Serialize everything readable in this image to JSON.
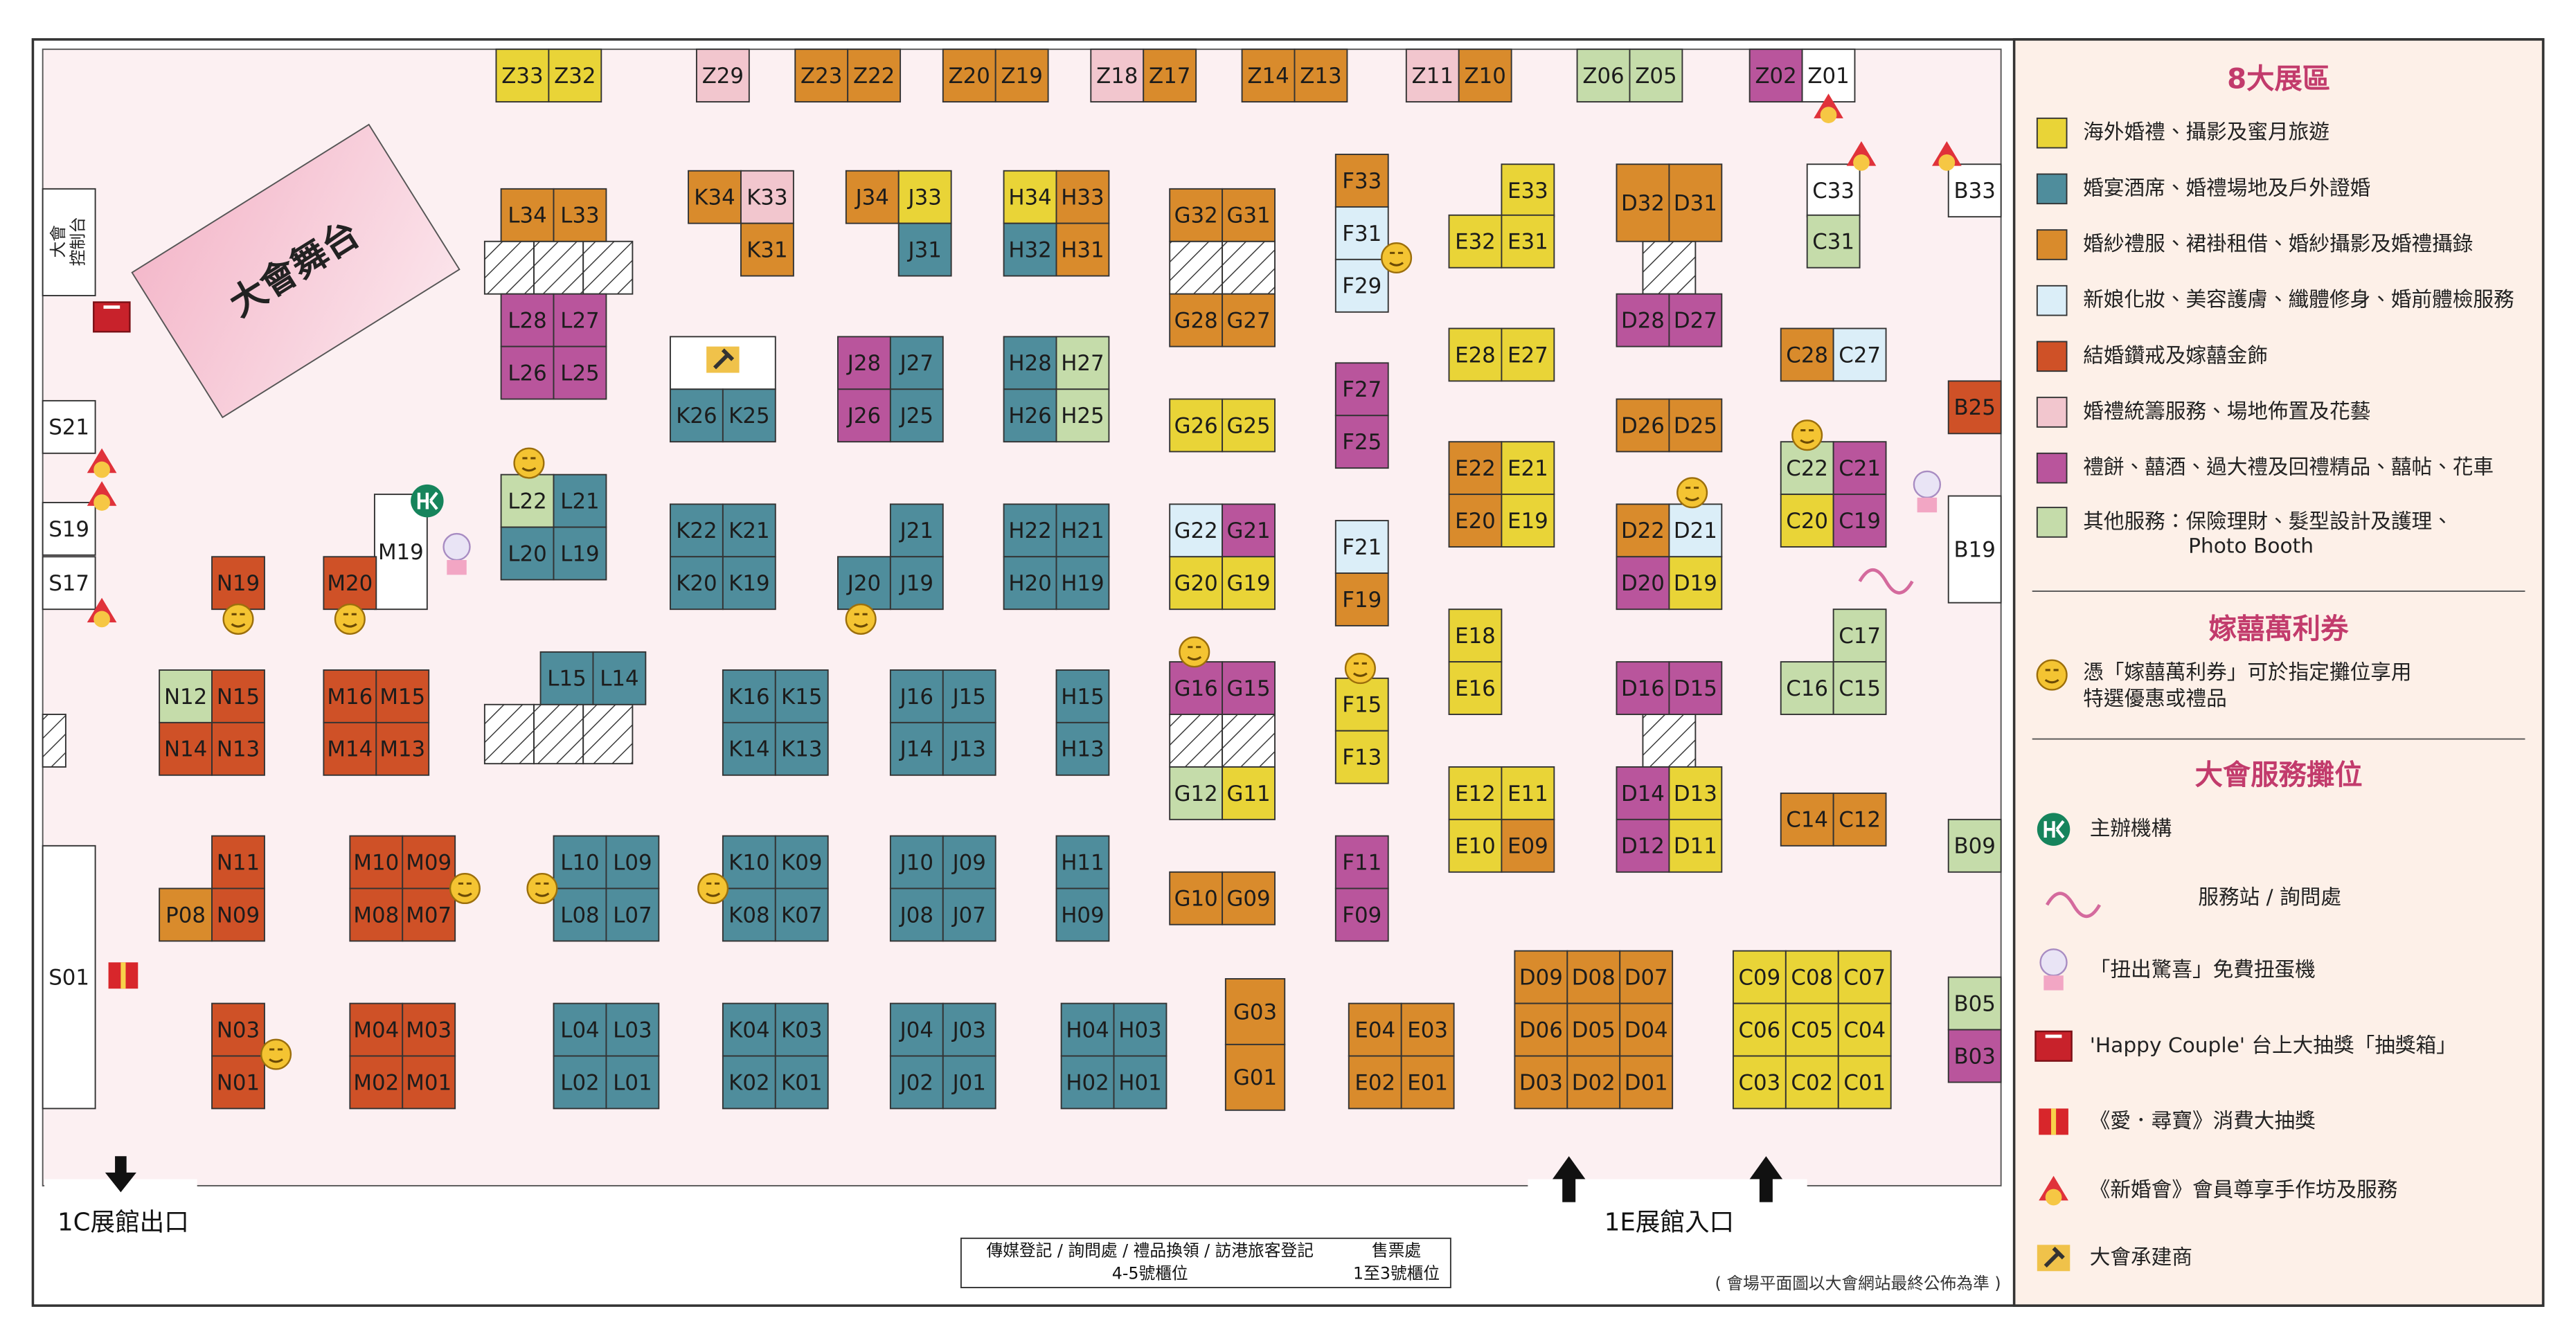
{
  "booths": [
    {
      "id": "Z33",
      "color": "#e9d437"
    },
    {
      "id": "Z32",
      "color": "#e9d437"
    },
    {
      "id": "Z29",
      "color": "#f2c6ce"
    },
    {
      "id": "Z23",
      "color": "#d98b2c"
    },
    {
      "id": "Z22",
      "color": "#d98b2c"
    },
    {
      "id": "Z20",
      "color": "#d98b2c"
    },
    {
      "id": "Z19",
      "color": "#d98b2c"
    },
    {
      "id": "Z18",
      "color": "#f2c6ce"
    },
    {
      "id": "Z17",
      "color": "#d98b2c"
    },
    {
      "id": "Z14",
      "color": "#d98b2c"
    },
    {
      "id": "Z13",
      "color": "#d98b2c"
    },
    {
      "id": "Z11",
      "color": "#f2c6ce"
    },
    {
      "id": "Z10",
      "color": "#d98b2c"
    },
    {
      "id": "Z06",
      "color": "#c5dcaa"
    },
    {
      "id": "Z05",
      "color": "#c5dcaa"
    },
    {
      "id": "Z02",
      "color": "#b9559c"
    },
    {
      "id": "Z01",
      "color": "#ffffff"
    },
    {
      "id": "L34",
      "color": "#d98b2c"
    },
    {
      "id": "L33",
      "color": "#d98b2c"
    },
    {
      "id": "L28",
      "color": "#b9559c"
    },
    {
      "id": "L27",
      "color": "#b9559c"
    },
    {
      "id": "L26",
      "color": "#b9559c"
    },
    {
      "id": "L25",
      "color": "#b9559c"
    },
    {
      "id": "K34",
      "color": "#d98b2c"
    },
    {
      "id": "K33",
      "color": "#f2c6ce"
    },
    {
      "id": "K31",
      "color": "#d98b2c"
    },
    {
      "id": "J34",
      "color": "#d98b2c"
    },
    {
      "id": "J33",
      "color": "#e9d437"
    },
    {
      "id": "J31",
      "color": "#4f8d9c"
    },
    {
      "id": "H34",
      "color": "#e9d437"
    },
    {
      "id": "H33",
      "color": "#d98b2c"
    },
    {
      "id": "H32",
      "color": "#4f8d9c"
    },
    {
      "id": "H31",
      "color": "#d98b2c"
    },
    {
      "id": "G32",
      "color": "#d98b2c"
    },
    {
      "id": "G31",
      "color": "#d98b2c"
    },
    {
      "id": "G28",
      "color": "#d98b2c"
    },
    {
      "id": "G27",
      "color": "#d98b2c"
    },
    {
      "id": "F33",
      "color": "#d98b2c"
    },
    {
      "id": "F31",
      "color": "#dbeef8"
    },
    {
      "id": "F29",
      "color": "#dbeef8"
    },
    {
      "id": "E33",
      "color": "#e9d437"
    },
    {
      "id": "E32",
      "color": "#e9d437"
    },
    {
      "id": "E31",
      "color": "#e9d437"
    },
    {
      "id": "D32",
      "color": "#d98b2c"
    },
    {
      "id": "D31",
      "color": "#d98b2c"
    },
    {
      "id": "D28",
      "color": "#b9559c"
    },
    {
      "id": "D27",
      "color": "#b9559c"
    },
    {
      "id": "C33",
      "color": "#ffffff"
    },
    {
      "id": "C31",
      "color": "#c5dcaa"
    },
    {
      "id": "B33",
      "color": "#ffffff"
    },
    {
      "id": "K26",
      "color": "#4f8d9c"
    },
    {
      "id": "K25",
      "color": "#4f8d9c"
    },
    {
      "id": "J28",
      "color": "#b9559c"
    },
    {
      "id": "J27",
      "color": "#4f8d9c"
    },
    {
      "id": "J26",
      "color": "#b9559c"
    },
    {
      "id": "J25",
      "color": "#4f8d9c"
    },
    {
      "id": "H28",
      "color": "#4f8d9c"
    },
    {
      "id": "H27",
      "color": "#c5dcaa"
    },
    {
      "id": "H26",
      "color": "#4f8d9c"
    },
    {
      "id": "H25",
      "color": "#c5dcaa"
    },
    {
      "id": "G26",
      "color": "#e9d437"
    },
    {
      "id": "G25",
      "color": "#e9d437"
    },
    {
      "id": "F27",
      "color": "#b9559c"
    },
    {
      "id": "F25",
      "color": "#b9559c"
    },
    {
      "id": "E28",
      "color": "#e9d437"
    },
    {
      "id": "E27",
      "color": "#e9d437"
    },
    {
      "id": "C28",
      "color": "#d98b2c"
    },
    {
      "id": "C27",
      "color": "#dbeef8"
    },
    {
      "id": "B25",
      "color": "#cf5127"
    },
    {
      "id": "D26",
      "color": "#d98b2c"
    },
    {
      "id": "D25",
      "color": "#d98b2c"
    },
    {
      "id": "E22",
      "color": "#d98b2c"
    },
    {
      "id": "E21",
      "color": "#e9d437"
    },
    {
      "id": "E20",
      "color": "#d98b2c"
    },
    {
      "id": "E19",
      "color": "#e9d437"
    },
    {
      "id": "C22",
      "color": "#c5dcaa"
    },
    {
      "id": "C21",
      "color": "#b9559c"
    },
    {
      "id": "C20",
      "color": "#e9d437"
    },
    {
      "id": "C19",
      "color": "#b9559c"
    },
    {
      "id": "L22",
      "color": "#c5dcaa"
    },
    {
      "id": "L21",
      "color": "#4f8d9c"
    },
    {
      "id": "L20",
      "color": "#4f8d9c"
    },
    {
      "id": "L19",
      "color": "#4f8d9c"
    },
    {
      "id": "M19",
      "color": "#ffffff"
    },
    {
      "id": "S21",
      "color": "#ffffff"
    },
    {
      "id": "S19",
      "color": "#ffffff"
    },
    {
      "id": "S17",
      "color": "#ffffff"
    },
    {
      "id": "N19",
      "color": "#cf5127"
    },
    {
      "id": "M20",
      "color": "#cf5127"
    },
    {
      "id": "K22",
      "color": "#4f8d9c"
    },
    {
      "id": "K21",
      "color": "#4f8d9c"
    },
    {
      "id": "K20",
      "color": "#4f8d9c"
    },
    {
      "id": "K19",
      "color": "#4f8d9c"
    },
    {
      "id": "J21",
      "color": "#4f8d9c"
    },
    {
      "id": "J20",
      "color": "#4f8d9c"
    },
    {
      "id": "J19",
      "color": "#4f8d9c"
    },
    {
      "id": "H22",
      "color": "#4f8d9c"
    },
    {
      "id": "H21",
      "color": "#4f8d9c"
    },
    {
      "id": "H20",
      "color": "#4f8d9c"
    },
    {
      "id": "H19",
      "color": "#4f8d9c"
    },
    {
      "id": "G22",
      "color": "#dbeef8"
    },
    {
      "id": "G21",
      "color": "#b9559c"
    },
    {
      "id": "G20",
      "color": "#e9d437"
    },
    {
      "id": "G19",
      "color": "#e9d437"
    },
    {
      "id": "F21",
      "color": "#dbeef8"
    },
    {
      "id": "F19",
      "color": "#d98b2c"
    },
    {
      "id": "D22",
      "color": "#d98b2c"
    },
    {
      "id": "D21",
      "color": "#dbeef8"
    },
    {
      "id": "D20",
      "color": "#b9559c"
    },
    {
      "id": "D19",
      "color": "#e9d437"
    },
    {
      "id": "B19",
      "color": "#ffffff"
    },
    {
      "id": "C17",
      "color": "#c5dcaa"
    },
    {
      "id": "C16",
      "color": "#c5dcaa"
    },
    {
      "id": "C15",
      "color": "#c5dcaa"
    },
    {
      "id": "E18",
      "color": "#e9d437"
    },
    {
      "id": "E16",
      "color": "#e9d437"
    },
    {
      "id": "L15",
      "color": "#4f8d9c"
    },
    {
      "id": "L14",
      "color": "#4f8d9c"
    },
    {
      "id": "N12",
      "color": "#c5dcaa"
    },
    {
      "id": "N15",
      "color": "#cf5127"
    },
    {
      "id": "N14",
      "color": "#cf5127"
    },
    {
      "id": "N13",
      "color": "#cf5127"
    },
    {
      "id": "M16",
      "color": "#cf5127"
    },
    {
      "id": "M15",
      "color": "#cf5127"
    },
    {
      "id": "M14",
      "color": "#cf5127"
    },
    {
      "id": "M13",
      "color": "#cf5127"
    },
    {
      "id": "K16",
      "color": "#4f8d9c"
    },
    {
      "id": "K15",
      "color": "#4f8d9c"
    },
    {
      "id": "K14",
      "color": "#4f8d9c"
    },
    {
      "id": "K13",
      "color": "#4f8d9c"
    },
    {
      "id": "J16",
      "color": "#4f8d9c"
    },
    {
      "id": "J15",
      "color": "#4f8d9c"
    },
    {
      "id": "J14",
      "color": "#4f8d9c"
    },
    {
      "id": "J13",
      "color": "#4f8d9c"
    },
    {
      "id": "H15",
      "color": "#4f8d9c"
    },
    {
      "id": "H13",
      "color": "#4f8d9c"
    },
    {
      "id": "G16",
      "color": "#b9559c"
    },
    {
      "id": "G15",
      "color": "#b9559c"
    },
    {
      "id": "G12",
      "color": "#c5dcaa"
    },
    {
      "id": "G11",
      "color": "#e9d437"
    },
    {
      "id": "F15",
      "color": "#e9d437"
    },
    {
      "id": "F13",
      "color": "#e9d437"
    },
    {
      "id": "D16",
      "color": "#b9559c"
    },
    {
      "id": "D15",
      "color": "#b9559c"
    },
    {
      "id": "D14",
      "color": "#b9559c"
    },
    {
      "id": "D13",
      "color": "#e9d437"
    },
    {
      "id": "D12",
      "color": "#b9559c"
    },
    {
      "id": "D11",
      "color": "#e9d437"
    },
    {
      "id": "E12",
      "color": "#e9d437"
    },
    {
      "id": "E11",
      "color": "#e9d437"
    },
    {
      "id": "E10",
      "color": "#e9d437"
    },
    {
      "id": "E09",
      "color": "#d98b2c"
    },
    {
      "id": "C14",
      "color": "#d98b2c"
    },
    {
      "id": "C12",
      "color": "#d98b2c"
    },
    {
      "id": "B09",
      "color": "#c5dcaa"
    },
    {
      "id": "N11",
      "color": "#cf5127"
    },
    {
      "id": "P08",
      "color": "#d98b2c"
    },
    {
      "id": "N09",
      "color": "#cf5127"
    },
    {
      "id": "M10",
      "color": "#cf5127"
    },
    {
      "id": "M09",
      "color": "#cf5127"
    },
    {
      "id": "M08",
      "color": "#cf5127"
    },
    {
      "id": "M07",
      "color": "#cf5127"
    },
    {
      "id": "L10",
      "color": "#4f8d9c"
    },
    {
      "id": "L09",
      "color": "#4f8d9c"
    },
    {
      "id": "L08",
      "color": "#4f8d9c"
    },
    {
      "id": "L07",
      "color": "#4f8d9c"
    },
    {
      "id": "K10",
      "color": "#4f8d9c"
    },
    {
      "id": "K09",
      "color": "#4f8d9c"
    },
    {
      "id": "K08",
      "color": "#4f8d9c"
    },
    {
      "id": "K07",
      "color": "#4f8d9c"
    },
    {
      "id": "J10",
      "color": "#4f8d9c"
    },
    {
      "id": "J09",
      "color": "#4f8d9c"
    },
    {
      "id": "J08",
      "color": "#4f8d9c"
    },
    {
      "id": "J07",
      "color": "#4f8d9c"
    },
    {
      "id": "H11",
      "color": "#4f8d9c"
    },
    {
      "id": "H09",
      "color": "#4f8d9c"
    },
    {
      "id": "G10",
      "color": "#d98b2c"
    },
    {
      "id": "G09",
      "color": "#d98b2c"
    },
    {
      "id": "F11",
      "color": "#b9559c"
    },
    {
      "id": "F09",
      "color": "#b9559c"
    },
    {
      "id": "S01",
      "color": "#ffffff"
    },
    {
      "id": "G03",
      "color": "#d98b2c"
    },
    {
      "id": "G01",
      "color": "#d98b2c"
    },
    {
      "id": "N03",
      "color": "#cf5127"
    },
    {
      "id": "N01",
      "color": "#cf5127"
    },
    {
      "id": "M04",
      "color": "#cf5127"
    },
    {
      "id": "M03",
      "color": "#cf5127"
    },
    {
      "id": "M02",
      "color": "#cf5127"
    },
    {
      "id": "M01",
      "color": "#cf5127"
    },
    {
      "id": "L04",
      "color": "#4f8d9c"
    },
    {
      "id": "L03",
      "color": "#4f8d9c"
    },
    {
      "id": "L02",
      "color": "#4f8d9c"
    },
    {
      "id": "L01",
      "color": "#4f8d9c"
    },
    {
      "id": "K04",
      "color": "#4f8d9c"
    },
    {
      "id": "K03",
      "color": "#4f8d9c"
    },
    {
      "id": "K02",
      "color": "#4f8d9c"
    },
    {
      "id": "K01",
      "color": "#4f8d9c"
    },
    {
      "id": "J04",
      "color": "#4f8d9c"
    },
    {
      "id": "J03",
      "color": "#4f8d9c"
    },
    {
      "id": "J02",
      "color": "#4f8d9c"
    },
    {
      "id": "J01",
      "color": "#4f8d9c"
    },
    {
      "id": "H04",
      "color": "#4f8d9c"
    },
    {
      "id": "H03",
      "color": "#4f8d9c"
    },
    {
      "id": "H02",
      "color": "#4f8d9c"
    },
    {
      "id": "H01",
      "color": "#4f8d9c"
    },
    {
      "id": "E04",
      "color": "#d98b2c"
    },
    {
      "id": "E03",
      "color": "#d98b2c"
    },
    {
      "id": "E02",
      "color": "#d98b2c"
    },
    {
      "id": "E01",
      "color": "#d98b2c"
    },
    {
      "id": "D09",
      "color": "#d98b2c"
    },
    {
      "id": "D08",
      "color": "#d98b2c"
    },
    {
      "id": "D07",
      "color": "#d98b2c"
    },
    {
      "id": "D06",
      "color": "#d98b2c"
    },
    {
      "id": "D05",
      "color": "#d98b2c"
    },
    {
      "id": "D04",
      "color": "#d98b2c"
    },
    {
      "id": "D03",
      "color": "#d98b2c"
    },
    {
      "id": "D02",
      "color": "#d98b2c"
    },
    {
      "id": "D01",
      "color": "#d98b2c"
    },
    {
      "id": "C09",
      "color": "#e9d437"
    },
    {
      "id": "C08",
      "color": "#e9d437"
    },
    {
      "id": "C07",
      "color": "#e9d437"
    },
    {
      "id": "C06",
      "color": "#e9d437"
    },
    {
      "id": "C05",
      "color": "#e9d437"
    },
    {
      "id": "C04",
      "color": "#e9d437"
    },
    {
      "id": "C03",
      "color": "#e9d437"
    },
    {
      "id": "C02",
      "color": "#e9d437"
    },
    {
      "id": "C01",
      "color": "#e9d437"
    },
    {
      "id": "B05",
      "color": "#c5dcaa"
    },
    {
      "id": "B03",
      "color": "#b9559c"
    }
  ],
  "stage": "大會舞台",
  "control_desk": [
    "大會",
    "控制台"
  ],
  "exits": {
    "left": "1C展館出口",
    "right": "1E展館入口"
  },
  "service_counter": {
    "left": [
      "傳媒登記 / 詢問處 / 禮品換領 / 訪港旅客登記",
      "4-5號櫃位"
    ],
    "right": [
      "售票處",
      "1至3號櫃位"
    ]
  },
  "note": "( 會場平面圖以大會網站最終公佈為準 )",
  "legend": {
    "zones_title": "8大展區",
    "zones": [
      {
        "lines": [
          "海外婚禮、攝影及蜜月旅遊"
        ],
        "color": "#e9d437"
      },
      {
        "lines": [
          "婚宴酒席、婚禮場地及戶外證婚"
        ],
        "color": "#4f8d9c"
      },
      {
        "lines": [
          "婚紗禮服、裙褂租借、婚紗攝影及婚禮攝錄"
        ],
        "color": "#d98b2c"
      },
      {
        "lines": [
          "新娘化妝、美容護膚、纖體修身、婚前體檢服務"
        ],
        "color": "#dbeef8"
      },
      {
        "lines": [
          "結婚鑽戒及嫁囍金飾"
        ],
        "color": "#cf5127"
      },
      {
        "lines": [
          "婚禮統籌服務、場地佈置及花藝"
        ],
        "color": "#f2c6ce"
      },
      {
        "lines": [
          "禮餅、囍酒、過大禮及回禮精品、囍帖、花車"
        ],
        "color": "#b9559c"
      },
      {
        "lines": [
          "其他服務：保險理財、髮型設計及護理、",
          "Photo Booth"
        ],
        "color": "#c5dcaa"
      }
    ],
    "coupon_title": "嫁囍萬利券",
    "coupon": [
      "憑「嫁囍萬利券」可於指定攤位享用",
      "特選優惠或禮品"
    ],
    "services_title": "大會服務攤位",
    "services": [
      "主辦機構",
      "服務站 / 詢問處",
      "「扭出驚喜」免費扭蛋機",
      "'Happy Couple' 台上大抽獎「抽獎箱」",
      "《愛．尋寶》消費大抽獎",
      "《新婚會》會員尊享手作坊及服務",
      "大會承建商"
    ]
  }
}
